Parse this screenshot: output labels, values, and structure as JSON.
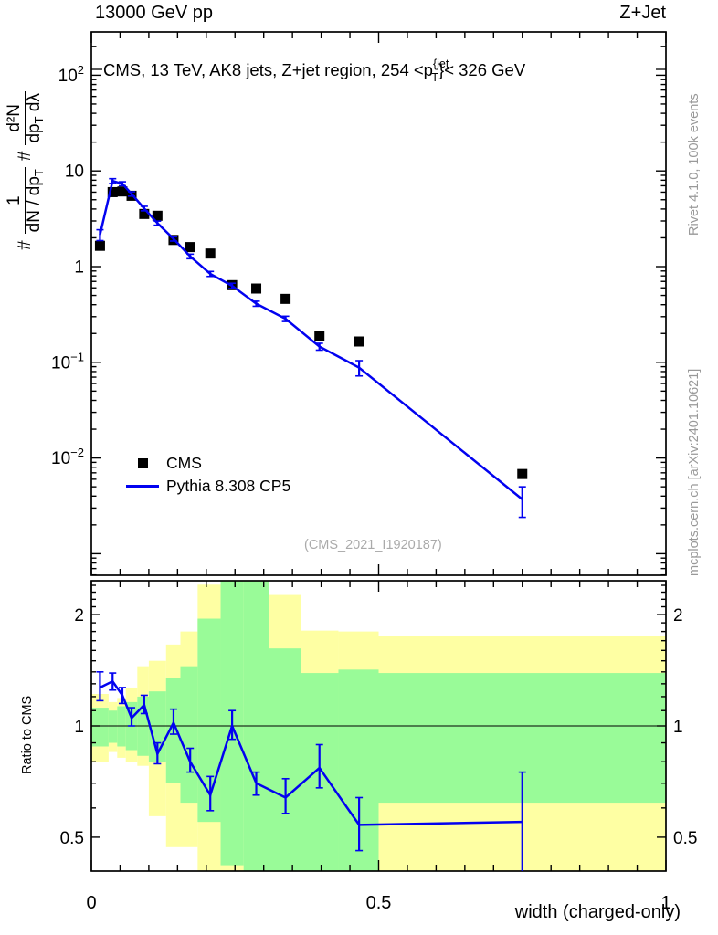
{
  "header": {
    "left": "13000 GeV pp",
    "right": "Z+Jet"
  },
  "panel_title": {
    "prefix": "CMS, 13 TeV, AK8 jets, Z+jet region, 254 <p",
    "sup": "{jet",
    "sub": "T",
    "suffix": "}< 326 GeV"
  },
  "ylabel": {
    "h1": "#",
    "f1num": "1",
    "f1den_a": "dN / dp",
    "f1den_sub": "T",
    "h2": "#",
    "f2num": "d²N",
    "f2den_a": "dp",
    "f2den_sub": "T",
    "f2den_b": " dλ"
  },
  "ratio_ylabel": "Ratio to CMS",
  "xlabel": "width (charged-only)",
  "legend": [
    {
      "label": "CMS",
      "marker": "square",
      "color": "#000000"
    },
    {
      "label": "Pythia 8.308 CP5",
      "marker": "line",
      "color": "#0202f0"
    }
  ],
  "watermark": "(CMS_2021_I1920187)",
  "side_notes": {
    "top": "Rivet 4.1.0,  100k events",
    "bottom": "mcplots.cern.ch [arXiv:2401.10621]"
  },
  "colors": {
    "mc_blue": "#0202f0",
    "band_inner_green": "#99fb98",
    "band_outer_yellow": "#feffa3",
    "note_gray": "#999999",
    "watermark_gray": "#aaaaaa"
  },
  "chart_data": {
    "type": "line",
    "title": "CMS, 13 TeV, AK8 jets, Z+jet region, 254 <p_T^{jet}< 326 GeV",
    "xlabel": "width (charged-only)",
    "x": [
      0.015,
      0.037,
      0.054,
      0.07,
      0.092,
      0.115,
      0.143,
      0.172,
      0.207,
      0.245,
      0.287,
      0.338,
      0.397,
      0.466,
      0.75
    ],
    "bin_edges": [
      0.0,
      0.03,
      0.045,
      0.06,
      0.08,
      0.1,
      0.13,
      0.155,
      0.185,
      0.225,
      0.265,
      0.31,
      0.365,
      0.43,
      0.5,
      1.0
    ],
    "series": [
      {
        "name": "CMS",
        "style": "black-squares",
        "values": [
          1.65,
          6.0,
          6.1,
          5.5,
          3.55,
          3.4,
          1.9,
          1.6,
          1.37,
          0.64,
          0.59,
          0.46,
          0.19,
          0.165,
          0.0068
        ]
      },
      {
        "name": "Pythia 8.308 CP5",
        "style": "blue-line-errorbars",
        "values": [
          2.15,
          7.85,
          7.35,
          5.75,
          4.05,
          2.85,
          1.95,
          1.28,
          0.84,
          0.63,
          0.41,
          0.285,
          0.146,
          0.088,
          0.0037
        ],
        "errors": [
          0.28,
          0.45,
          0.35,
          0.3,
          0.22,
          0.14,
          0.1,
          0.07,
          0.05,
          0.04,
          0.025,
          0.018,
          0.012,
          0.016,
          0.0013
        ]
      }
    ],
    "main_axis": {
      "ylog": true,
      "ylim": [
        0.0006,
        285
      ],
      "xlim": [
        0,
        1
      ],
      "grid": false,
      "yticks": [
        {
          "v": 100,
          "label": "10^2"
        },
        {
          "v": 10,
          "label": "10"
        },
        {
          "v": 1,
          "label": "1"
        },
        {
          "v": 0.1,
          "label": "10^-1"
        },
        {
          "v": 0.01,
          "label": "10^-2"
        }
      ],
      "xticks": [
        {
          "v": 0,
          "label": "0"
        },
        {
          "v": 0.5,
          "label": "0.5"
        },
        {
          "v": 1,
          "label": "1"
        }
      ]
    },
    "ratio": {
      "name": "Ratio to CMS",
      "ylog": true,
      "ylim": [
        0.405,
        2.46
      ],
      "yticks": [
        {
          "v": 0.5,
          "label": "0.5"
        },
        {
          "v": 1,
          "label": "1"
        },
        {
          "v": 2,
          "label": "2"
        }
      ],
      "values": [
        1.27,
        1.32,
        1.21,
        1.05,
        1.14,
        0.84,
        1.02,
        0.8,
        0.65,
        1.0,
        0.7,
        0.64,
        0.77,
        0.54,
        0.55
      ],
      "errors": [
        [
          0.1,
          0.13
        ],
        [
          0.07,
          0.07
        ],
        [
          0.06,
          0.06
        ],
        [
          0.05,
          0.07
        ],
        [
          0.06,
          0.07
        ],
        [
          0.05,
          0.06
        ],
        [
          0.07,
          0.09
        ],
        [
          0.05,
          0.07
        ],
        [
          0.06,
          0.08
        ],
        [
          0.08,
          0.1
        ],
        [
          0.05,
          0.05
        ],
        [
          0.06,
          0.08
        ],
        [
          0.09,
          0.12
        ],
        [
          0.08,
          0.1
        ],
        [
          0.22,
          0.2
        ]
      ],
      "bands": {
        "outer_yellow": [
          [
            0.8,
            1.22
          ],
          [
            0.85,
            1.16
          ],
          [
            0.82,
            1.19
          ],
          [
            0.8,
            1.27
          ],
          [
            0.78,
            1.45
          ],
          [
            0.57,
            1.5
          ],
          [
            0.47,
            1.66
          ],
          [
            0.47,
            1.8
          ],
          [
            0.3,
            2.41
          ],
          [
            0.3,
            2.6
          ],
          [
            0.3,
            2.6
          ],
          [
            0.3,
            2.26
          ],
          [
            0.3,
            1.81
          ],
          [
            0.3,
            1.8
          ],
          [
            0.3,
            1.75
          ]
        ],
        "inner_green": [
          [
            0.88,
            1.12
          ],
          [
            0.9,
            1.1
          ],
          [
            0.88,
            1.13
          ],
          [
            0.86,
            1.16
          ],
          [
            0.83,
            1.2
          ],
          [
            0.8,
            1.24
          ],
          [
            0.7,
            1.35
          ],
          [
            0.62,
            1.45
          ],
          [
            0.55,
            1.95
          ],
          [
            0.42,
            2.6
          ],
          [
            0.3,
            2.6
          ],
          [
            0.3,
            1.62
          ],
          [
            0.3,
            1.39
          ],
          [
            0.3,
            1.42
          ],
          [
            0.62,
            1.39
          ]
        ]
      }
    }
  }
}
